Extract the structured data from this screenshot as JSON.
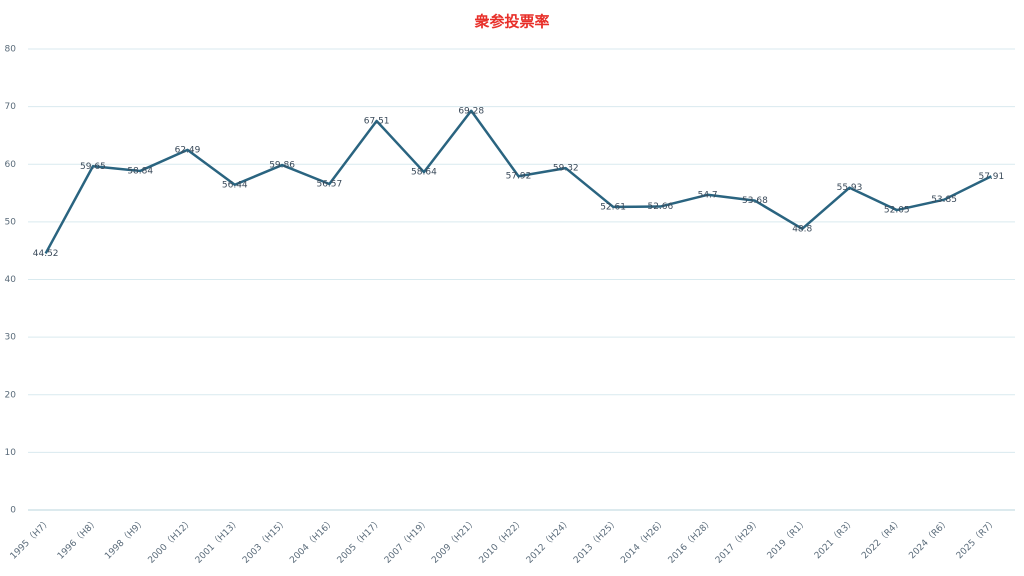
{
  "chart_data": {
    "type": "line",
    "title": "衆参投票率",
    "categories": [
      "1995（H7）",
      "1996（H8）",
      "1998（H9）",
      "2000（H12）",
      "2001（H13）",
      "2003（H15）",
      "2004（H16）",
      "2005（H17）",
      "2007（H19）",
      "2009（H21）",
      "2010（H22）",
      "2012（H24）",
      "2013（H25）",
      "2014（H26）",
      "2016（H28）",
      "2017（H29）",
      "2019（R1）",
      "2021（R3）",
      "2022（R4）",
      "2024（R6）",
      "2025（R7）"
    ],
    "values": [
      44.52,
      59.65,
      58.84,
      62.49,
      56.44,
      59.86,
      56.57,
      67.51,
      58.64,
      69.28,
      57.92,
      59.32,
      52.61,
      52.66,
      54.7,
      53.68,
      48.8,
      55.93,
      52.05,
      53.85,
      57.91
    ],
    "color": "#2a6480",
    "ylim": [
      0,
      80
    ],
    "yticks": [
      0,
      10,
      20,
      30,
      40,
      50,
      60,
      70,
      80
    ],
    "grid": true
  }
}
